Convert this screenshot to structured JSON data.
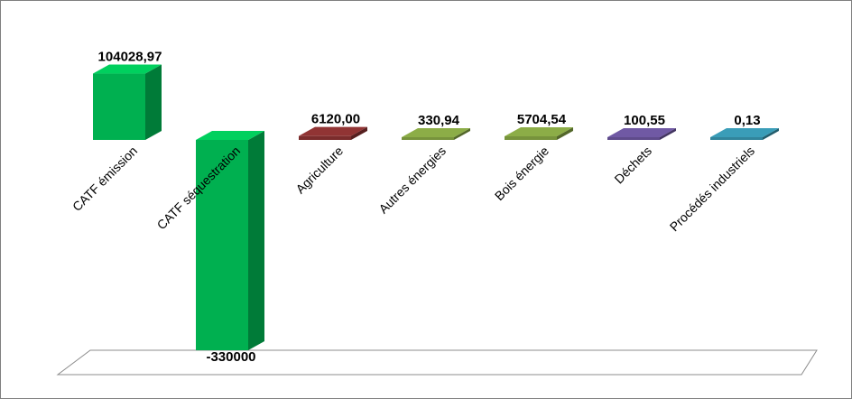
{
  "chart_data": {
    "type": "bar",
    "style": "3d-column",
    "categories": [
      "CATF émission",
      "CATF séquestration",
      "Agriculture",
      "Autres énergies",
      "Bois énergie",
      "Déchets",
      "Procédés industriels"
    ],
    "values": [
      104028.97,
      -330000,
      6120.0,
      330.94,
      5704.54,
      100.55,
      0.13
    ],
    "value_labels": [
      "104028,97",
      "-330000",
      "6120,00",
      "330,94",
      "5704,54",
      "100,55",
      "0,13"
    ],
    "colors": [
      "#00b050",
      "#00b050",
      "#7b2c2c",
      "#77933c",
      "#77933c",
      "#5f4b8b",
      "#31859c"
    ],
    "title": "",
    "xlabel": "",
    "ylabel": "",
    "legend": "none",
    "grid": false
  }
}
